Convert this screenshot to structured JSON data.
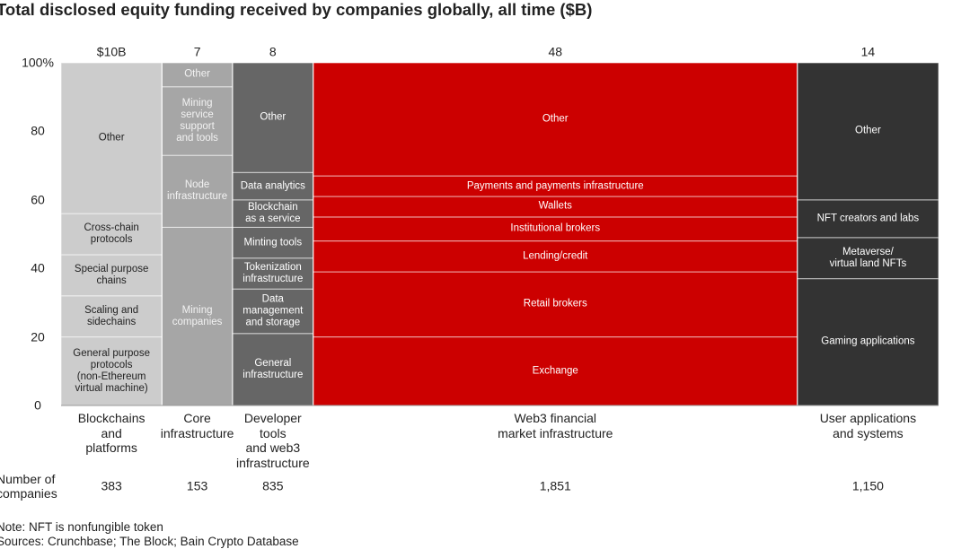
{
  "chart_data": {
    "type": "marimekko",
    "title": "Total disclosed equity funding received by companies globally, all time ($B)",
    "ylim": [
      0,
      100
    ],
    "yticks": [
      0,
      20,
      40,
      60,
      80,
      {
        "value": 100,
        "label": "100%"
      }
    ],
    "columns": [
      {
        "name": "Blockchains\nand\nplatforms",
        "value": 10,
        "value_label": "$10B",
        "color": "#cccccc",
        "text_color": "#222222",
        "segments": [
          {
            "name": "General purpose\nprotocols\n(non-Ethereum\nvirtual machine)",
            "value": 20
          },
          {
            "name": "Scaling and\nsidechains",
            "value": 12
          },
          {
            "name": "Special purpose\nchains",
            "value": 12
          },
          {
            "name": "Cross-chain\nprotocols",
            "value": 12
          },
          {
            "name": "Other",
            "value": 44
          }
        ]
      },
      {
        "name": "Core\ninfrastructure",
        "value": 7,
        "color": "#a6a6a6",
        "text_color": "#f2f2f2",
        "segments": [
          {
            "name": "Mining\ncompanies",
            "value": 52
          },
          {
            "name": "Node\ninfrastructure",
            "value": 21
          },
          {
            "name": "Mining\nservice\nsupport\nand tools",
            "value": 20
          },
          {
            "name": "Other",
            "value": 7
          }
        ]
      },
      {
        "name": "Developer\ntools\nand web3\ninfrastructure",
        "value": 8,
        "color": "#666666",
        "text_color": "#ffffff",
        "segments": [
          {
            "name": "General\ninfrastructure",
            "value": 21
          },
          {
            "name": "Data\nmanagement\nand storage",
            "value": 13
          },
          {
            "name": "Tokenization\ninfrastructure",
            "value": 9
          },
          {
            "name": "Minting tools",
            "value": 9
          },
          {
            "name": "Blockchain\nas a service",
            "value": 8
          },
          {
            "name": "Data analytics",
            "value": 8
          },
          {
            "name": "Other",
            "value": 32
          }
        ]
      },
      {
        "name": "Web3 financial\nmarket infrastructure",
        "value": 48,
        "color": "#cc0000",
        "text_color": "#ffffff",
        "segments": [
          {
            "name": "Exchange",
            "value": 20
          },
          {
            "name": "Retail brokers",
            "value": 19
          },
          {
            "name": "Lending/credit",
            "value": 9
          },
          {
            "name": "Institutional brokers",
            "value": 7
          },
          {
            "name": "Wallets",
            "value": 6
          },
          {
            "name": "Payments and payments infrastructure",
            "value": 6
          },
          {
            "name": "Other",
            "value": 33
          }
        ]
      },
      {
        "name": "User applications\nand systems",
        "value": 14,
        "color": "#333333",
        "text_color": "#ffffff",
        "segments": [
          {
            "name": "Gaming applications",
            "value": 37
          },
          {
            "name": "Metaverse/\nvirtual land NFTs",
            "value": 12
          },
          {
            "name": "NFT creators and labs",
            "value": 11
          },
          {
            "name": "Other",
            "value": 40
          }
        ]
      }
    ],
    "company_counts": {
      "label": "Number of\ncompanies",
      "values": [
        383,
        153,
        835,
        1851,
        1150
      ],
      "value_labels": [
        "383",
        "153",
        "835",
        "1,851",
        "1,150"
      ]
    },
    "note": "Note: NFT is nonfungible token",
    "sources": "Sources: Crunchbase; The Block; Bain Crypto Database"
  }
}
